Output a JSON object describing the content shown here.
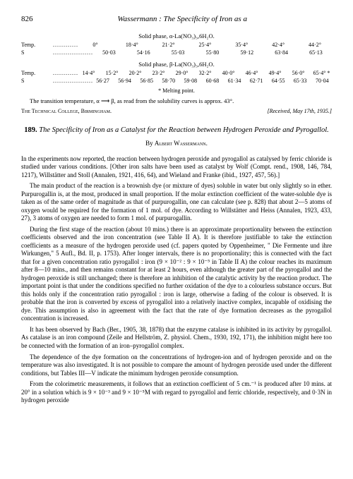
{
  "header": {
    "page_number": "826",
    "running_title": "Wassermann : The Specificity of Iron as a"
  },
  "table1": {
    "phase_label": "Solid phase, α-La(NO₃)₃,6H₂O.",
    "temp_label": "Temp.",
    "s_label": "S",
    "temp_values": [
      "0°",
      "18·4°",
      "21·2°",
      "25·4°",
      "35·4°",
      "42·4°",
      "44·2°"
    ],
    "s_values": [
      "50·03",
      "54·16",
      "55·03",
      "55·80",
      "59·12",
      "63·84",
      "65·13"
    ]
  },
  "table2": {
    "phase_label": "Solid phase, β-La(NO₃)₃,6H₂O.",
    "temp_label": "Temp.",
    "s_label": "S",
    "temp_values": [
      "14·4°",
      "15·2°",
      "20·2°",
      "23·2°",
      "29·0°",
      "32·2°",
      "40·0°",
      "46·4°",
      "49·4°",
      "56·0°",
      "65·4° *"
    ],
    "s_values": [
      "56·27",
      "56·94",
      "56·85",
      "58·70",
      "59·08",
      "60·68",
      "61·34",
      "62·71",
      "64·55",
      "65·33",
      "70·04"
    ]
  },
  "melting_note": "* Melting point.",
  "transition_note": "The transition temperature, α ⟶ β, as read from the solubility curves is approx. 43°.",
  "affiliation": "The Technical College, Birmingham.",
  "received": "[Received, May 17th, 1935.]",
  "article": {
    "number": "189.",
    "title": "The Specificity of Iron as a Catalyst for the Reaction between Hydrogen Peroxide and Pyrogallol.",
    "by": "By",
    "author": "Albert Wassermann."
  },
  "paragraphs": {
    "p1": "In the experiments now reported, the reaction between hydrogen peroxide and pyrogallol as catalysed by ferric chloride is studied under various conditions. [Other iron salts have been used as catalyst by Wolf (Compt. rend., 1908, 146, 784, 1217), Willstätter and Stoll (Annalen, 1921, 416, 64), and Wieland and Franke (ibid., 1927, 457, 56).]",
    "p2": "The main product of the reaction is a brownish dye (or mixture of dyes) soluble in water but only slightly so in ether. Purpurogallin is, at the most, produced in small proportion. If the molar extinction coefficient of the water-soluble dye is taken as of the same order of magnitude as that of purpurogallin, one can calculate (see p. 828) that about 2—5 atoms of oxygen would be required for the formation of 1 mol. of dye. According to Willstätter and Heiss (Annalen, 1923, 433, 27), 3 atoms of oxygen are needed to form 1 mol. of purpurogallin.",
    "p3": "During the first stage of the reaction (about 10 mins.) there is an approximate proportionality between the extinction coefficients observed and the iron concentration (see Table II A). It is therefore justifiable to take the extinction coefficients as a measure of the hydrogen peroxide used (cf. papers quoted by Oppenheimer, \" Die Fermente und ihre Wirkungen,\" 5 Aufl., Bd. II, p. 1753). After longer intervals, there is no proportionality; this is connected with the fact that for a given concentration ratio pyrogallol : iron (9 × 10⁻² : 9 × 10⁻⁵ in Table II A) the colour reaches its maximum after 8—10 mins., and then remains constant for at least 2 hours, even although the greater part of the pyrogallol and the hydrogen peroxide is still unchanged; there is therefore an inhibition of the catalytic activity by the reaction product. The important point is that under the conditions specified no further oxidation of the dye to a colourless substance occurs. But this holds only if the concentration ratio pyrogallol : iron is large, otherwise a fading of the colour is observed. It is probable that the iron is converted by excess of pyrogallol into a relatively inactive complex, incapable of oxidising the dye. This assumption is also in agreement with the fact that the rate of dye formation decreases as the pyrogallol concentration is increased.",
    "p4": "It has been observed by Bach (Ber., 1905, 38, 1878) that the enzyme catalase is inhibited in its activity by pyrogallol. As catalase is an iron compound (Zeile and Hellström, Z. physiol. Chem., 1930, 192, 171), the inhibition might here too be connected with the formation of an iron–pyrogallol complex.",
    "p5": "The dependence of the dye formation on the concentrations of hydrogen-ion and of hydrogen peroxide and on the temperature was also investigated. It is not possible to compare the amount of hydrogen peroxide used under the different conditions, but Tables III—V indicate the minimum hydrogen peroxide consumption.",
    "p6": "From the colorimetric measurements, it follows that an extinction coefficient of 5 cm.⁻¹ is produced after 10 mins. at 20° in a solution which is 9 × 10⁻³ and 9 × 10⁻⁵M with regard to pyrogallol and ferric chloride, respectively, and 0·3N in hydrogen peroxide"
  }
}
